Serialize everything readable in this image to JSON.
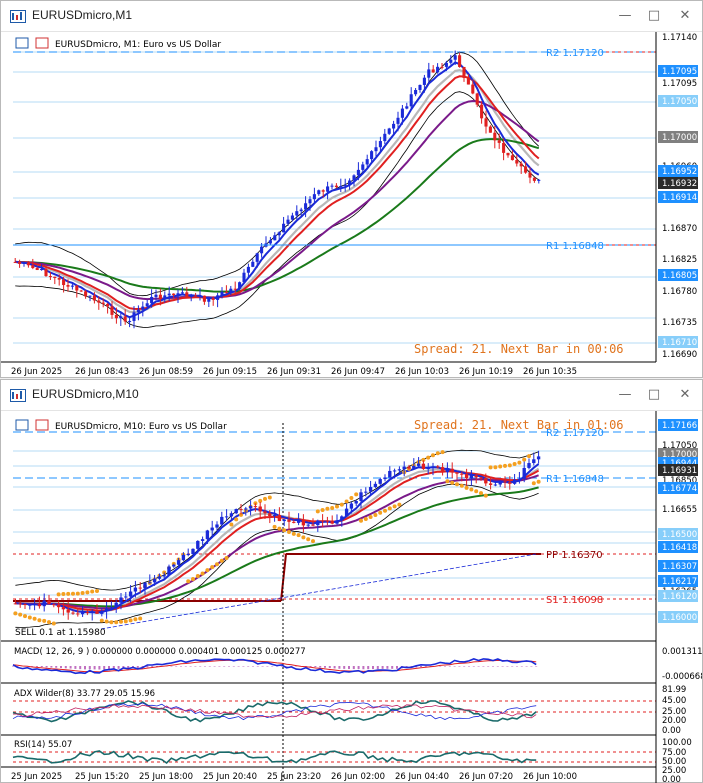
{
  "colors": {
    "grid": "#c0dcf0",
    "blue_line": "#1e90ff",
    "spread": "#e0741e",
    "band": "#000000",
    "ma_blue": "#1a2ad8",
    "ma_red": "#e02020",
    "ma_purple": "#7a1a8a",
    "ma_green": "#1a7a1a",
    "ma_silver": "#b8b8b8",
    "psar": "#f4a020",
    "pivot": "#8b0000",
    "macd": "#1a2ad8",
    "adx": "#1a6a6a",
    "rsi": "#1a6a6a"
  },
  "window1": {
    "title": "EURUSDmicro,M1",
    "legend": "EURUSDmicro, M1:  Euro vs US Dollar",
    "spread_text": "Spread: 21. Next Bar in 00:06",
    "r2_label": "R2 1.17120",
    "r1_label": "R1 1.16848",
    "price_labels": [
      "1.17140",
      "1.17095",
      "1.17050",
      "1.17005",
      "1.16960",
      "1.16915",
      "1.16870",
      "1.16825",
      "1.16780",
      "1.16735",
      "1.16690"
    ],
    "marker_labels": [
      {
        "text": "1.17095",
        "bg": "#1e90ff"
      },
      {
        "text": "1.17050",
        "bg": "#87cefa"
      },
      {
        "text": "1.17000",
        "bg": "#808080"
      },
      {
        "text": "1.16952",
        "bg": "#1e90ff"
      },
      {
        "text": "1.16932",
        "bg": "#2b2b2b"
      },
      {
        "text": "1.16914",
        "bg": "#1e90ff"
      },
      {
        "text": "1.16805",
        "bg": "#1e90ff"
      },
      {
        "text": "1.16710",
        "bg": "#87cefa"
      }
    ],
    "time_labels": [
      "26 Jun 2025",
      "26 Jun 08:43",
      "26 Jun 08:59",
      "26 Jun 09:15",
      "26 Jun 09:31",
      "26 Jun 09:47",
      "26 Jun 10:03",
      "26 Jun 10:19",
      "26 Jun 10:35"
    ]
  },
  "window2": {
    "title": "EURUSDmicro,M10",
    "legend": "EURUSDmicro, M10:  Euro vs US Dollar",
    "spread_text": "Spread: 21. Next Bar in 01:06",
    "r2_label": "R2 1.17120",
    "r1_label": "R1 1.16848",
    "pp_label": "PP 1.16370",
    "s1_label": "S1 1.16098",
    "sell_label": "SELL 0.1 at 1.15980",
    "price_labels": [
      "1.17050",
      "1.16955",
      "1.16850",
      "1.16655",
      "1.16560",
      "1.16265",
      "1.16055"
    ],
    "marker_labels": [
      {
        "text": "1.17166",
        "bg": "#1e90ff"
      },
      {
        "text": "1.17000",
        "bg": "#808080"
      },
      {
        "text": "1.16944",
        "bg": "#1e90ff"
      },
      {
        "text": "1.16931",
        "bg": "#2b2b2b"
      },
      {
        "text": "1.16774",
        "bg": "#1e90ff"
      },
      {
        "text": "1.16500",
        "bg": "#87cefa"
      },
      {
        "text": "1.16418",
        "bg": "#1e90ff"
      },
      {
        "text": "1.16307",
        "bg": "#1e90ff"
      },
      {
        "text": "1.16217",
        "bg": "#1e90ff"
      },
      {
        "text": "1.16120",
        "bg": "#87cefa"
      },
      {
        "text": "1.16000",
        "bg": "#87cefa"
      }
    ],
    "macd_label": "MACD( 12, 26, 9 ) 0.000000 0.000000 0.000401 0.000125 0.000277",
    "macd_scale": [
      "0.001311",
      "-0.000668"
    ],
    "adx_label": "ADX Wilder(8) 33.77 29.05 15.96",
    "adx_scale": [
      "81.99",
      "45.00",
      "25.00",
      "20.00",
      "0.00"
    ],
    "rsi_label": "RSI(14) 55.07",
    "rsi_scale": [
      "100.00",
      "75.00",
      "50.00",
      "25.00",
      "0.00"
    ],
    "time_labels": [
      "25 Jun 2025",
      "25 Jun 15:20",
      "25 Jun 18:00",
      "25 Jun 20:40",
      "25 Jun 23:20",
      "26 Jun 02:00",
      "26 Jun 04:40",
      "26 Jun 07:20",
      "26 Jun 10:00"
    ]
  }
}
